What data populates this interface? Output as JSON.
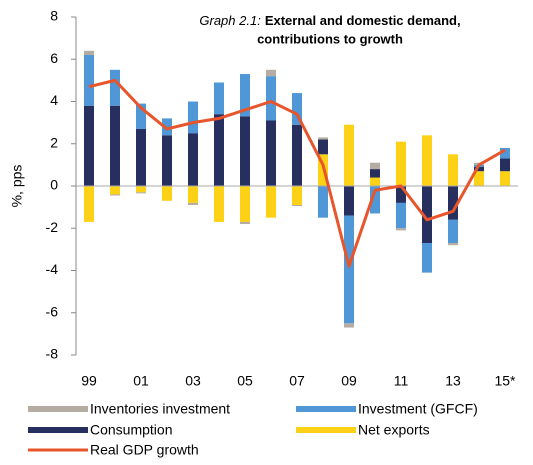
{
  "chart_data": {
    "type": "bar",
    "graph_label": "Graph 2.1:",
    "title": [
      "External and domestic demand,",
      "contributions to growth"
    ],
    "y_label": "%, pps",
    "categories": [
      "99",
      null,
      "01",
      null,
      "03",
      null,
      "05",
      null,
      "07",
      null,
      "09",
      null,
      "11",
      null,
      "13",
      null,
      "15*"
    ],
    "ylim": [
      -8,
      8
    ],
    "yticks": [
      -8,
      -6,
      -4,
      -2,
      0,
      2,
      4,
      6,
      8
    ],
    "series": [
      {
        "name": "Inventories investment",
        "color": "#b5aca3",
        "values": [
          0.2,
          -0.05,
          -0.05,
          0,
          -0.1,
          0,
          -0.1,
          0.3,
          -0.05,
          0.1,
          -0.2,
          0.3,
          -0.1,
          0,
          -0.1,
          0.1,
          0
        ]
      },
      {
        "name": "Investment (GFCF)",
        "color": "#4f97d6",
        "values": [
          2.4,
          1.7,
          1.2,
          0.8,
          1.5,
          1.5,
          2.0,
          2.1,
          1.5,
          -1.5,
          -5.1,
          -1.3,
          -1.2,
          -1.4,
          -1.1,
          0.1,
          0.5
        ]
      },
      {
        "name": "Consumption",
        "color": "#262f5e",
        "values": [
          3.8,
          3.8,
          2.7,
          2.4,
          2.5,
          3.4,
          3.3,
          3.1,
          2.9,
          0.7,
          -1.4,
          0.4,
          -0.8,
          -2.7,
          -1.6,
          0.2,
          0.6
        ]
      },
      {
        "name": "Net exports",
        "color": "#fcd116",
        "values": [
          -1.7,
          -0.4,
          -0.3,
          -0.7,
          -0.8,
          -1.7,
          -1.7,
          -1.5,
          -0.9,
          1.5,
          2.9,
          0.4,
          2.1,
          2.4,
          1.5,
          0.7,
          0.7
        ]
      },
      {
        "name": "Real GDP growth",
        "type": "line",
        "color": "#e8552b",
        "values": [
          4.7,
          5.0,
          3.7,
          2.7,
          3.0,
          3.2,
          3.6,
          4.0,
          3.4,
          1.0,
          -3.8,
          -0.2,
          0.0,
          -1.6,
          -1.2,
          1.0,
          1.7
        ]
      }
    ]
  }
}
